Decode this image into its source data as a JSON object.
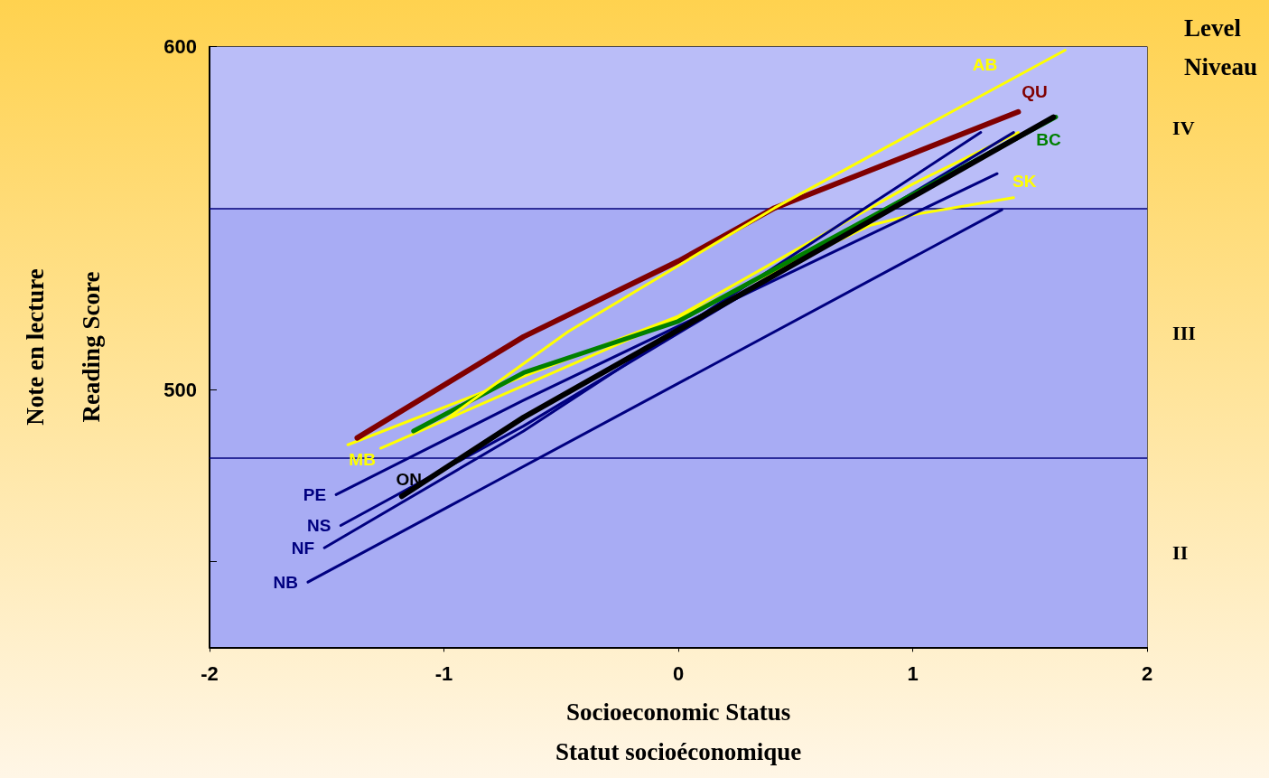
{
  "chart_data": {
    "type": "line",
    "xlabel": "Socioeconomic Status\nStatut socioéconomique",
    "ylabel": "Note en lecture\nReading Score",
    "legend_title": "Level\nNiveau",
    "xlim": [
      -2,
      2
    ],
    "xticks": [
      -2,
      -1,
      0,
      1,
      2
    ],
    "ylim": [
      425,
      600
    ],
    "yticks": [
      {
        "value": 450,
        "label": null
      },
      500,
      600
    ],
    "grid": false,
    "legend": false,
    "marker": "none",
    "line_style": "solid",
    "bands": [
      {
        "axis": "y",
        "from": 552.9,
        "to": 600,
        "label": "IV",
        "color": "#babdf8"
      },
      {
        "axis": "y",
        "from": 480.2,
        "to": 552.9,
        "label": "III",
        "color": "#a8acf4"
      },
      {
        "axis": "y",
        "from": 425,
        "to": 480.2,
        "label": "II",
        "color": "#a8acf4"
      }
    ],
    "ref_lines": [
      {
        "axis": "y",
        "value": 552.9,
        "color": "#000080"
      },
      {
        "axis": "y",
        "value": 480.2,
        "color": "#000080"
      }
    ],
    "series": [
      {
        "name": "AB",
        "color": "#ffff00",
        "x": [
          -1.0,
          -0.47,
          0.41,
          1.65
        ],
        "values": [
          491,
          517,
          553,
          599
        ]
      },
      {
        "name": "QU",
        "color": "#800000",
        "x": [
          -1.37,
          -0.66,
          0,
          0.41,
          1.45
        ],
        "values": [
          486,
          515.5,
          537.5,
          553,
          581
        ]
      },
      {
        "name": "BC",
        "color": "#008000",
        "x": [
          -1.13,
          -0.66,
          0,
          1.61
        ],
        "values": [
          488,
          505,
          520,
          579.5
        ]
      },
      {
        "name": "SK",
        "color": "#ffff00",
        "x": [
          -1.27,
          0,
          0.82,
          1.0,
          1.43
        ],
        "values": [
          483,
          521,
          548,
          551,
          556
        ]
      },
      {
        "name": "MB",
        "color": "#ffff00",
        "x": [
          -1.41,
          0,
          1.0,
          1.45
        ],
        "values": [
          484,
          521.5,
          560,
          575
        ]
      },
      {
        "name": "ON",
        "color": "#000000",
        "x": [
          -1.18,
          -0.66,
          0,
          1.6
        ],
        "values": [
          469,
          492,
          517.5,
          579.5
        ]
      },
      {
        "name": "PE",
        "color": "#000080",
        "x": [
          -1.46,
          -0.66,
          1.36
        ],
        "values": [
          469.5,
          497,
          563
        ]
      },
      {
        "name": "NS",
        "color": "#000080",
        "x": [
          -1.44,
          -0.66,
          1.43
        ],
        "values": [
          460.5,
          489.5,
          575
        ]
      },
      {
        "name": "NF",
        "color": "#000080",
        "x": [
          -1.51,
          -0.66,
          1.29
        ],
        "values": [
          454,
          488,
          575
        ]
      },
      {
        "name": "NB",
        "color": "#000080",
        "x": [
          -1.58,
          1.38
        ],
        "values": [
          444,
          552.5
        ]
      }
    ]
  }
}
